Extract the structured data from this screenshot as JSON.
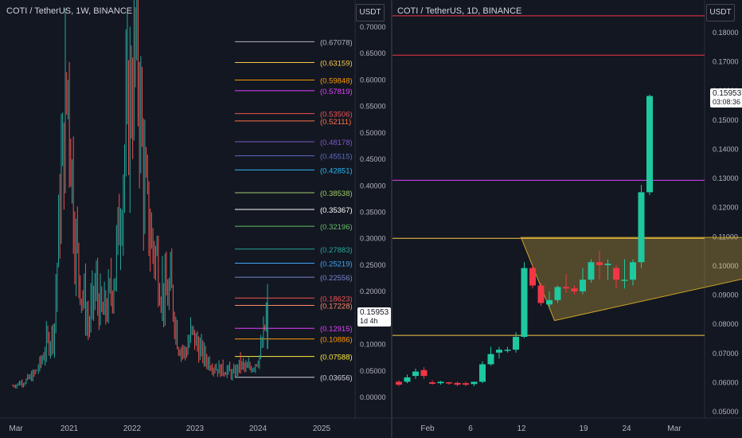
{
  "charts": [
    {
      "title": "COTI / TetherUS, 1W, BINANCE",
      "currency": "USDT",
      "y_axis_ticks": [
        "0.70000",
        "0.65000",
        "0.60000",
        "0.55000",
        "0.50000",
        "0.45000",
        "0.40000",
        "0.35000",
        "0.30000",
        "0.25000",
        "0.20000",
        "0.15000",
        "0.10000",
        "0.05000",
        "0.00000"
      ],
      "x_axis_ticks": [
        "Mar",
        "2021",
        "2022",
        "2023",
        "2024",
        "2025"
      ],
      "price_tag": {
        "price": "0.15953",
        "countdown": "1d 4h"
      },
      "fib_levels": [
        {
          "label": "(0.67078)",
          "color": "#b2b5be"
        },
        {
          "label": "(0.63159)",
          "color": "#f7c948"
        },
        {
          "label": "(0.59848)",
          "color": "#ff9800"
        },
        {
          "label": "(0.57819)",
          "color": "#e040fb"
        },
        {
          "label": "(0.53506)",
          "color": "#ef5350"
        },
        {
          "label": "(0.52111)",
          "color": "#ff7043"
        },
        {
          "label": "(0.48178)",
          "color": "#7e57c2"
        },
        {
          "label": "(0.45515)",
          "color": "#5c6bc0"
        },
        {
          "label": "(0.42851)",
          "color": "#29b6f6"
        },
        {
          "label": "(0.38538)",
          "color": "#9ccc65"
        },
        {
          "label": "(0.35367)",
          "color": "#ffffff"
        },
        {
          "label": "(0.32196)",
          "color": "#66bb6a"
        },
        {
          "label": "(0.27883)",
          "color": "#26a69a"
        },
        {
          "label": "(0.25219)",
          "color": "#42a5f5"
        },
        {
          "label": "(0.22556)",
          "color": "#7986cb"
        },
        {
          "label": "(0.18623)",
          "color": "#ef5350"
        },
        {
          "label": "(0.17228)",
          "color": "#ff8a65"
        },
        {
          "label": "(0.12915)",
          "color": "#e040fb"
        },
        {
          "label": "(0.10886)",
          "color": "#ff9800"
        },
        {
          "label": "(0.07588)",
          "color": "#ffeb3b"
        },
        {
          "label": "(0.03656)",
          "color": "#d1d4dc"
        }
      ]
    },
    {
      "title": "COTI / TetherUS, 1D, BINANCE",
      "currency": "USDT",
      "y_axis_ticks": [
        "0.18000",
        "0.17000",
        "0.16000",
        "0.15000",
        "0.14000",
        "0.13000",
        "0.12000",
        "0.11000",
        "0.10000",
        "0.09000",
        "0.08000",
        "0.07000",
        "0.06000",
        "0.05000"
      ],
      "x_axis_ticks": [
        "Feb",
        "6",
        "12",
        "19",
        "24",
        "Mar"
      ],
      "price_tag": {
        "price": "0.15953",
        "countdown": "03:08:36"
      }
    }
  ],
  "chart_data": [
    {
      "type": "candlestick",
      "title": "COTI / TetherUS, 1W, BINANCE",
      "ylim": [
        0,
        0.7
      ],
      "x_ticks": [
        "Mar",
        "2021",
        "2022",
        "2023",
        "2024",
        "2025"
      ],
      "fib_retracement_levels": [
        0.67078,
        0.63159,
        0.59848,
        0.57819,
        0.53506,
        0.52111,
        0.48178,
        0.45515,
        0.42851,
        0.38538,
        0.35367,
        0.32196,
        0.27883,
        0.25219,
        0.22556,
        0.18623,
        0.17228,
        0.12915,
        0.10886,
        0.07588,
        0.03656
      ],
      "approx_close_path": [
        0.02,
        0.025,
        0.03,
        0.04,
        0.06,
        0.1,
        0.12,
        0.4,
        0.6,
        0.3,
        0.2,
        0.13,
        0.2,
        0.15,
        0.18,
        0.25,
        0.42,
        0.55,
        0.68,
        0.4,
        0.3,
        0.25,
        0.18,
        0.2,
        0.1,
        0.08,
        0.12,
        0.09,
        0.07,
        0.06,
        0.05,
        0.05,
        0.04,
        0.06,
        0.05,
        0.06,
        0.08,
        0.16
      ],
      "current_price": 0.15953
    },
    {
      "type": "candlestick",
      "title": "COTI / TetherUS, 1D, BINANCE",
      "ylim": [
        0.05,
        0.185
      ],
      "x_ticks": [
        "Feb",
        "6",
        "12",
        "19",
        "24",
        "Mar"
      ],
      "candles": [
        {
          "o": 0.06,
          "c": 0.059,
          "h": 0.0605,
          "l": 0.0585
        },
        {
          "o": 0.06,
          "c": 0.0615,
          "h": 0.0625,
          "l": 0.0595
        },
        {
          "o": 0.062,
          "c": 0.0635,
          "h": 0.0645,
          "l": 0.061
        },
        {
          "o": 0.064,
          "c": 0.062,
          "h": 0.065,
          "l": 0.061
        },
        {
          "o": 0.0598,
          "c": 0.0593,
          "h": 0.0605,
          "l": 0.059
        },
        {
          "o": 0.0595,
          "c": 0.06,
          "h": 0.0603,
          "l": 0.059
        },
        {
          "o": 0.0598,
          "c": 0.0594,
          "h": 0.06,
          "l": 0.059
        },
        {
          "o": 0.0596,
          "c": 0.059,
          "h": 0.06,
          "l": 0.0585
        },
        {
          "o": 0.0595,
          "c": 0.059,
          "h": 0.06,
          "l": 0.0585
        },
        {
          "o": 0.0592,
          "c": 0.06,
          "h": 0.06,
          "l": 0.0585
        },
        {
          "o": 0.06,
          "c": 0.066,
          "h": 0.067,
          "l": 0.0595
        },
        {
          "o": 0.066,
          "c": 0.0695,
          "h": 0.072,
          "l": 0.0655
        },
        {
          "o": 0.07,
          "c": 0.071,
          "h": 0.072,
          "l": 0.068
        },
        {
          "o": 0.071,
          "c": 0.071,
          "h": 0.072,
          "l": 0.07
        },
        {
          "o": 0.071,
          "c": 0.0754,
          "h": 0.077,
          "l": 0.07
        },
        {
          "o": 0.0754,
          "c": 0.099,
          "h": 0.101,
          "l": 0.075
        },
        {
          "o": 0.099,
          "c": 0.093,
          "h": 0.1,
          "l": 0.092
        },
        {
          "o": 0.093,
          "c": 0.087,
          "h": 0.094,
          "l": 0.086
        },
        {
          "o": 0.0865,
          "c": 0.088,
          "h": 0.091,
          "l": 0.085
        },
        {
          "o": 0.088,
          "c": 0.0925,
          "h": 0.093,
          "l": 0.087
        },
        {
          "o": 0.0925,
          "c": 0.092,
          "h": 0.097,
          "l": 0.0905
        },
        {
          "o": 0.092,
          "c": 0.091,
          "h": 0.093,
          "l": 0.09
        },
        {
          "o": 0.091,
          "c": 0.095,
          "h": 0.099,
          "l": 0.09
        },
        {
          "o": 0.095,
          "c": 0.101,
          "h": 0.102,
          "l": 0.094
        },
        {
          "o": 0.101,
          "c": 0.1,
          "h": 0.105,
          "l": 0.095
        },
        {
          "o": 0.1,
          "c": 0.1005,
          "h": 0.102,
          "l": 0.095
        },
        {
          "o": 0.099,
          "c": 0.095,
          "h": 0.1,
          "l": 0.092
        },
        {
          "o": 0.095,
          "c": 0.095,
          "h": 0.102,
          "l": 0.092
        },
        {
          "o": 0.095,
          "c": 0.101,
          "h": 0.102,
          "l": 0.093
        },
        {
          "o": 0.101,
          "c": 0.125,
          "h": 0.1275,
          "l": 0.099
        },
        {
          "o": 0.125,
          "c": 0.158,
          "h": 0.1585,
          "l": 0.124
        }
      ],
      "horizontal_levels": [
        {
          "price": 0.1855,
          "color": "#f23645"
        },
        {
          "price": 0.172,
          "color": "#f23645"
        },
        {
          "price": 0.1291,
          "color": "#e040fb"
        },
        {
          "price": 0.1092,
          "color": "#f7c948"
        },
        {
          "price": 0.0759,
          "color": "#f7c948"
        }
      ],
      "triangle": [
        [
          15,
          0.1095
        ],
        [
          19,
          0.081
        ],
        [
          64,
          0.1095
        ]
      ],
      "current_price": 0.15953
    }
  ]
}
